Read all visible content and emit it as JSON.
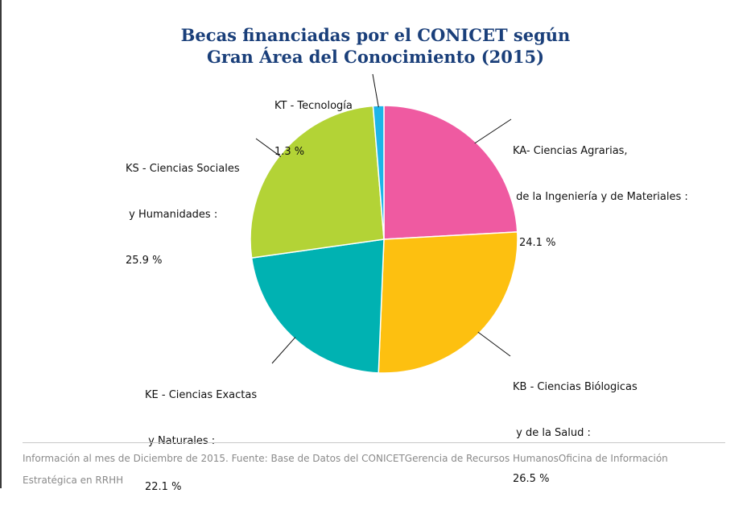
{
  "colors": {
    "KA": "#ef5aa1",
    "KB": "#fdc010",
    "KE": "#00b2b2",
    "KS": "#b3d336",
    "KT": "#1db5e8",
    "title": "#1a3f7a"
  },
  "chart_data": {
    "type": "pie",
    "title_line1": "Becas financiadas por el CONICET según",
    "title_line2": "Gran Área del Conocimiento (2015)",
    "slices": [
      {
        "key": "KA",
        "label_lines": [
          "KA- Ciencias Agrarias,",
          " de la Ingeniería y de Materiales :"
        ],
        "value_text": "24.1 %",
        "value": 24.1
      },
      {
        "key": "KB",
        "label_lines": [
          "KB - Ciencias Biólogicas",
          " y de la Salud :"
        ],
        "value_text": "26.5 %",
        "value": 26.5
      },
      {
        "key": "KE",
        "label_lines": [
          "KE - Ciencias Exactas",
          " y Naturales :"
        ],
        "value_text": "22.1 %",
        "value": 22.1
      },
      {
        "key": "KS",
        "label_lines": [
          "KS - Ciencias Sociales",
          " y Humanidades :"
        ],
        "value_text": "25.9 %",
        "value": 25.9
      },
      {
        "key": "KT",
        "label_lines": [
          "KT - Tecnología"
        ],
        "value_text": "1.3 %",
        "value": 1.3
      }
    ],
    "legend": "none"
  },
  "footer": {
    "line1": "Información al mes de Diciembre de 2015. Fuente: Base de Datos del CONICETGerencia de Recursos HumanosOficina de Información",
    "line2": "Estratégica en RRHH"
  }
}
